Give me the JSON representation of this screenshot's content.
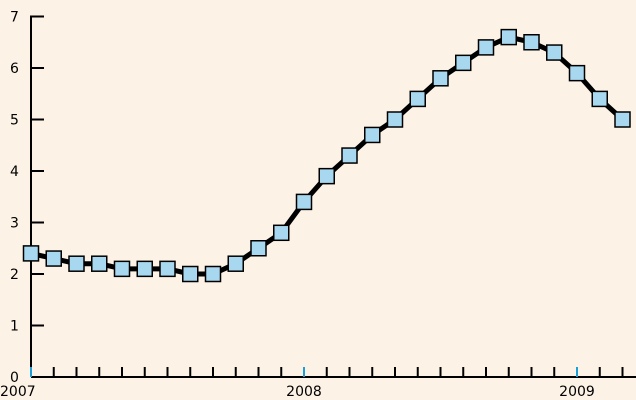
{
  "chart_data": {
    "type": "line",
    "x_unit": "month",
    "x_start": "2007-01",
    "x_ticks": [
      {
        "date": "2007-01",
        "label": "2007"
      },
      {
        "date": "2008-01",
        "label": "2008"
      },
      {
        "date": "2009-01",
        "label": "2009"
      }
    ],
    "y_ticks": [
      0,
      1,
      2,
      3,
      4,
      5,
      6,
      7
    ],
    "ylim": [
      0,
      7
    ],
    "xlim": [
      "2007-01",
      "2009-04"
    ],
    "title": "",
    "xlabel": "",
    "ylabel": "",
    "grid": false,
    "legend": "none",
    "points": [
      {
        "x": "2007-01",
        "y": 2.4
      },
      {
        "x": "2007-02",
        "y": 2.3
      },
      {
        "x": "2007-03",
        "y": 2.2
      },
      {
        "x": "2007-04",
        "y": 2.2
      },
      {
        "x": "2007-05",
        "y": 2.1
      },
      {
        "x": "2007-06",
        "y": 2.1
      },
      {
        "x": "2007-07",
        "y": 2.1
      },
      {
        "x": "2007-08",
        "y": 2.0
      },
      {
        "x": "2007-09",
        "y": 2.0
      },
      {
        "x": "2007-10",
        "y": 2.2
      },
      {
        "x": "2007-11",
        "y": 2.5
      },
      {
        "x": "2007-12",
        "y": 2.8
      },
      {
        "x": "2008-01",
        "y": 3.4
      },
      {
        "x": "2008-02",
        "y": 3.9
      },
      {
        "x": "2008-03",
        "y": 4.3
      },
      {
        "x": "2008-04",
        "y": 4.7
      },
      {
        "x": "2008-05",
        "y": 5.0
      },
      {
        "x": "2008-06",
        "y": 5.4
      },
      {
        "x": "2008-07",
        "y": 5.8
      },
      {
        "x": "2008-08",
        "y": 6.1
      },
      {
        "x": "2008-09",
        "y": 6.4
      },
      {
        "x": "2008-10",
        "y": 6.6
      },
      {
        "x": "2008-11",
        "y": 6.5
      },
      {
        "x": "2008-12",
        "y": 6.3
      },
      {
        "x": "2009-01",
        "y": 5.9
      },
      {
        "x": "2009-02",
        "y": 5.4
      },
      {
        "x": "2009-03",
        "y": 5.0
      }
    ],
    "colors": {
      "background": "#fcf3e6",
      "line": "#000000",
      "marker_fill": "#a8d8f0",
      "marker_stroke": "#000000",
      "axis": "#000000",
      "year_tick": "#1aa0d8"
    }
  }
}
